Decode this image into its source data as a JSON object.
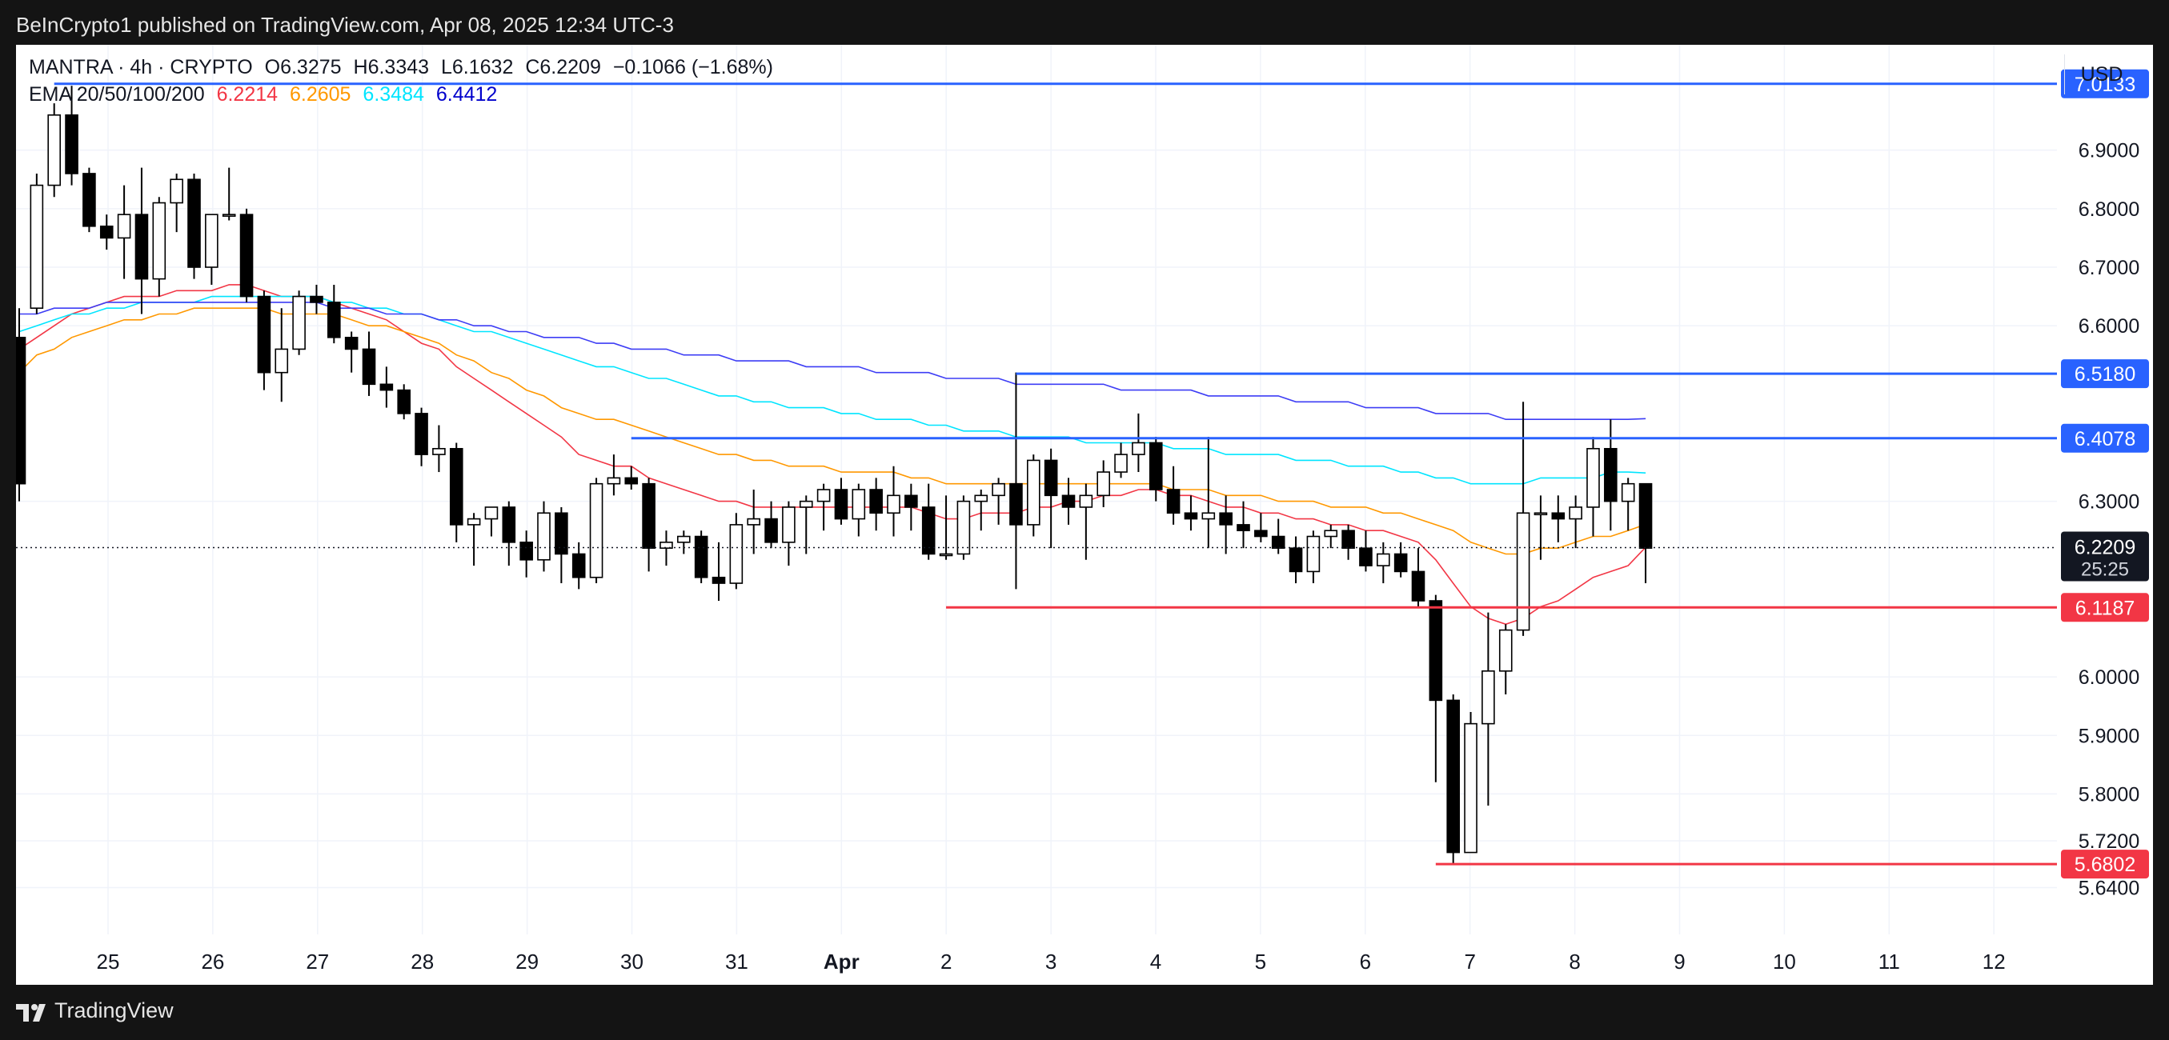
{
  "header": {
    "published_by": "BeInCrypto1 published on TradingView.com, Apr 08, 2025 12:34 UTC-3"
  },
  "legend": {
    "symbol_line": "MANTRA · 4h · CRYPTO",
    "open": "O6.3275",
    "high": "H6.3343",
    "low": "L6.1632",
    "close": "C6.2209",
    "change": "−0.1066 (−1.68%)",
    "ema_label": "EMA 20/50/100/200",
    "ema_values": [
      "6.2214",
      "6.2605",
      "6.3484",
      "6.4412"
    ]
  },
  "currency": "USD",
  "footer": {
    "brand": "TradingView"
  },
  "colors": {
    "up": "#ffffff",
    "down": "#000000",
    "ema20": "#f23645",
    "ema50": "#ff9800",
    "ema100": "#00e5ff",
    "ema200": "#3d3df5",
    "resistance": "#2962ff",
    "support": "#f23645"
  },
  "chart_data": {
    "type": "candlestick",
    "timeframe": "4h",
    "x_tick_labels": [
      "25",
      "26",
      "27",
      "28",
      "29",
      "30",
      "31",
      "Apr",
      "2",
      "3",
      "4",
      "5",
      "6",
      "7",
      "8",
      "9",
      "10",
      "11",
      "12"
    ],
    "y_tick_labels": [
      "6.9000",
      "6.8000",
      "6.7000",
      "6.6000",
      "6.3000",
      "6.0000",
      "5.9000",
      "5.8000",
      "5.7200",
      "5.6400"
    ],
    "ylim": [
      5.56,
      7.08
    ],
    "grid": true,
    "candles": [
      [
        6.58,
        6.63,
        6.3,
        6.33
      ],
      [
        6.63,
        6.86,
        6.62,
        6.84
      ],
      [
        6.84,
        6.98,
        6.82,
        6.96
      ],
      [
        6.96,
        7.01,
        6.84,
        6.86
      ],
      [
        6.86,
        6.87,
        6.76,
        6.77
      ],
      [
        6.77,
        6.79,
        6.73,
        6.75
      ],
      [
        6.75,
        6.84,
        6.68,
        6.79
      ],
      [
        6.79,
        6.87,
        6.62,
        6.68
      ],
      [
        6.68,
        6.82,
        6.65,
        6.81
      ],
      [
        6.81,
        6.86,
        6.76,
        6.85
      ],
      [
        6.85,
        6.86,
        6.68,
        6.7
      ],
      [
        6.7,
        6.79,
        6.67,
        6.79
      ],
      [
        6.79,
        6.87,
        6.78,
        6.79
      ],
      [
        6.79,
        6.8,
        6.64,
        6.65
      ],
      [
        6.65,
        6.66,
        6.49,
        6.52
      ],
      [
        6.52,
        6.63,
        6.47,
        6.56
      ],
      [
        6.56,
        6.66,
        6.55,
        6.65
      ],
      [
        6.65,
        6.67,
        6.62,
        6.64
      ],
      [
        6.64,
        6.67,
        6.57,
        6.58
      ],
      [
        6.58,
        6.59,
        6.52,
        6.56
      ],
      [
        6.56,
        6.59,
        6.48,
        6.5
      ],
      [
        6.5,
        6.53,
        6.46,
        6.49
      ],
      [
        6.49,
        6.5,
        6.44,
        6.45
      ],
      [
        6.45,
        6.46,
        6.36,
        6.38
      ],
      [
        6.38,
        6.43,
        6.35,
        6.39
      ],
      [
        6.39,
        6.4,
        6.23,
        6.26
      ],
      [
        6.26,
        6.28,
        6.19,
        6.27
      ],
      [
        6.27,
        6.29,
        6.24,
        6.29
      ],
      [
        6.29,
        6.3,
        6.19,
        6.23
      ],
      [
        6.23,
        6.25,
        6.17,
        6.2
      ],
      [
        6.2,
        6.3,
        6.18,
        6.28
      ],
      [
        6.28,
        6.29,
        6.16,
        6.21
      ],
      [
        6.21,
        6.23,
        6.15,
        6.17
      ],
      [
        6.17,
        6.34,
        6.16,
        6.33
      ],
      [
        6.33,
        6.38,
        6.31,
        6.34
      ],
      [
        6.34,
        6.36,
        6.32,
        6.33
      ],
      [
        6.33,
        6.34,
        6.18,
        6.22
      ],
      [
        6.22,
        6.25,
        6.19,
        6.23
      ],
      [
        6.23,
        6.25,
        6.21,
        6.24
      ],
      [
        6.24,
        6.25,
        6.16,
        6.17
      ],
      [
        6.17,
        6.23,
        6.13,
        6.16
      ],
      [
        6.16,
        6.28,
        6.15,
        6.26
      ],
      [
        6.26,
        6.32,
        6.21,
        6.27
      ],
      [
        6.27,
        6.3,
        6.22,
        6.23
      ],
      [
        6.23,
        6.3,
        6.19,
        6.29
      ],
      [
        6.29,
        6.31,
        6.21,
        6.3
      ],
      [
        6.3,
        6.33,
        6.25,
        6.32
      ],
      [
        6.32,
        6.34,
        6.26,
        6.27
      ],
      [
        6.27,
        6.33,
        6.24,
        6.32
      ],
      [
        6.32,
        6.34,
        6.25,
        6.28
      ],
      [
        6.28,
        6.36,
        6.24,
        6.31
      ],
      [
        6.31,
        6.33,
        6.25,
        6.29
      ],
      [
        6.29,
        6.33,
        6.2,
        6.21
      ],
      [
        6.21,
        6.31,
        6.2,
        6.21
      ],
      [
        6.21,
        6.31,
        6.2,
        6.3
      ],
      [
        6.3,
        6.32,
        6.25,
        6.31
      ],
      [
        6.31,
        6.34,
        6.26,
        6.33
      ],
      [
        6.33,
        6.52,
        6.15,
        6.26
      ],
      [
        6.26,
        6.38,
        6.24,
        6.37
      ],
      [
        6.37,
        6.39,
        6.22,
        6.31
      ],
      [
        6.31,
        6.34,
        6.26,
        6.29
      ],
      [
        6.29,
        6.33,
        6.2,
        6.31
      ],
      [
        6.31,
        6.37,
        6.29,
        6.35
      ],
      [
        6.35,
        6.4,
        6.34,
        6.38
      ],
      [
        6.38,
        6.45,
        6.35,
        6.4
      ],
      [
        6.4,
        6.41,
        6.3,
        6.32
      ],
      [
        6.32,
        6.36,
        6.26,
        6.28
      ],
      [
        6.28,
        6.31,
        6.25,
        6.27
      ],
      [
        6.27,
        6.41,
        6.22,
        6.28
      ],
      [
        6.28,
        6.31,
        6.21,
        6.26
      ],
      [
        6.26,
        6.3,
        6.22,
        6.25
      ],
      [
        6.25,
        6.28,
        6.23,
        6.24
      ],
      [
        6.24,
        6.27,
        6.21,
        6.22
      ],
      [
        6.22,
        6.24,
        6.16,
        6.18
      ],
      [
        6.18,
        6.25,
        6.16,
        6.24
      ],
      [
        6.24,
        6.26,
        6.22,
        6.25
      ],
      [
        6.25,
        6.26,
        6.2,
        6.22
      ],
      [
        6.22,
        6.25,
        6.18,
        6.19
      ],
      [
        6.19,
        6.23,
        6.16,
        6.21
      ],
      [
        6.21,
        6.23,
        6.17,
        6.18
      ],
      [
        6.18,
        6.22,
        6.12,
        6.13
      ],
      [
        6.13,
        6.14,
        5.82,
        5.96
      ],
      [
        5.96,
        5.97,
        5.68,
        5.7
      ],
      [
        5.7,
        5.94,
        5.71,
        5.92
      ],
      [
        5.92,
        6.11,
        5.78,
        6.01
      ],
      [
        6.01,
        6.09,
        5.97,
        6.08
      ],
      [
        6.08,
        6.47,
        6.07,
        6.28
      ],
      [
        6.28,
        6.31,
        6.2,
        6.28
      ],
      [
        6.28,
        6.31,
        6.23,
        6.27
      ],
      [
        6.27,
        6.31,
        6.22,
        6.29
      ],
      [
        6.29,
        6.41,
        6.24,
        6.39
      ],
      [
        6.39,
        6.44,
        6.25,
        6.3
      ],
      [
        6.3,
        6.34,
        6.25,
        6.33
      ],
      [
        6.33,
        6.33,
        6.16,
        6.22
      ]
    ],
    "ema_series": [
      {
        "name": "EMA 20",
        "values": [
          6.56,
          6.58,
          6.6,
          6.62,
          6.63,
          6.64,
          6.65,
          6.65,
          6.65,
          6.66,
          6.66,
          6.66,
          6.67,
          6.67,
          6.66,
          6.65,
          6.65,
          6.65,
          6.64,
          6.63,
          6.62,
          6.61,
          6.59,
          6.57,
          6.56,
          6.53,
          6.51,
          6.49,
          6.47,
          6.45,
          6.43,
          6.41,
          6.38,
          6.37,
          6.36,
          6.36,
          6.34,
          6.33,
          6.32,
          6.31,
          6.3,
          6.3,
          6.29,
          6.29,
          6.29,
          6.29,
          6.29,
          6.29,
          6.29,
          6.29,
          6.29,
          6.29,
          6.28,
          6.27,
          6.27,
          6.28,
          6.28,
          6.28,
          6.29,
          6.29,
          6.3,
          6.3,
          6.31,
          6.31,
          6.32,
          6.32,
          6.31,
          6.31,
          6.3,
          6.29,
          6.29,
          6.28,
          6.28,
          6.27,
          6.27,
          6.26,
          6.26,
          6.25,
          6.25,
          6.24,
          6.23,
          6.2,
          6.16,
          6.12,
          6.1,
          6.09,
          6.1,
          6.12,
          6.13,
          6.15,
          6.17,
          6.18,
          6.19,
          6.2214
        ]
      },
      {
        "name": "EMA 50",
        "values": [
          6.52,
          6.55,
          6.56,
          6.58,
          6.59,
          6.6,
          6.61,
          6.61,
          6.62,
          6.62,
          6.63,
          6.63,
          6.63,
          6.63,
          6.63,
          6.62,
          6.62,
          6.62,
          6.62,
          6.61,
          6.6,
          6.6,
          6.59,
          6.58,
          6.57,
          6.55,
          6.54,
          6.52,
          6.51,
          6.49,
          6.48,
          6.46,
          6.45,
          6.44,
          6.44,
          6.43,
          6.42,
          6.41,
          6.4,
          6.39,
          6.38,
          6.38,
          6.37,
          6.37,
          6.36,
          6.36,
          6.36,
          6.35,
          6.35,
          6.35,
          6.35,
          6.34,
          6.34,
          6.33,
          6.33,
          6.33,
          6.33,
          6.33,
          6.33,
          6.33,
          6.33,
          6.33,
          6.33,
          6.33,
          6.33,
          6.33,
          6.32,
          6.32,
          6.32,
          6.31,
          6.31,
          6.31,
          6.3,
          6.3,
          6.3,
          6.29,
          6.29,
          6.29,
          6.28,
          6.28,
          6.27,
          6.26,
          6.25,
          6.23,
          6.22,
          6.21,
          6.21,
          6.22,
          6.22,
          6.23,
          6.24,
          6.24,
          6.25,
          6.2605
        ]
      },
      {
        "name": "EMA 100",
        "values": [
          6.59,
          6.6,
          6.61,
          6.62,
          6.62,
          6.63,
          6.63,
          6.64,
          6.64,
          6.64,
          6.64,
          6.65,
          6.65,
          6.65,
          6.65,
          6.65,
          6.65,
          6.65,
          6.64,
          6.64,
          6.63,
          6.63,
          6.62,
          6.62,
          6.61,
          6.6,
          6.59,
          6.59,
          6.58,
          6.57,
          6.56,
          6.55,
          6.54,
          6.53,
          6.53,
          6.52,
          6.51,
          6.51,
          6.5,
          6.49,
          6.48,
          6.48,
          6.47,
          6.47,
          6.46,
          6.46,
          6.46,
          6.45,
          6.45,
          6.44,
          6.44,
          6.44,
          6.43,
          6.43,
          6.42,
          6.42,
          6.42,
          6.41,
          6.41,
          6.41,
          6.41,
          6.4,
          6.4,
          6.4,
          6.4,
          6.4,
          6.39,
          6.39,
          6.39,
          6.38,
          6.38,
          6.38,
          6.38,
          6.37,
          6.37,
          6.37,
          6.36,
          6.36,
          6.36,
          6.35,
          6.35,
          6.34,
          6.34,
          6.33,
          6.33,
          6.33,
          6.33,
          6.34,
          6.34,
          6.34,
          6.34,
          6.35,
          6.35,
          6.3484
        ]
      },
      {
        "name": "EMA 200",
        "values": [
          6.62,
          6.62,
          6.63,
          6.63,
          6.63,
          6.64,
          6.64,
          6.64,
          6.64,
          6.64,
          6.64,
          6.64,
          6.64,
          6.64,
          6.64,
          6.64,
          6.64,
          6.64,
          6.63,
          6.63,
          6.63,
          6.62,
          6.62,
          6.62,
          6.61,
          6.61,
          6.6,
          6.6,
          6.59,
          6.59,
          6.58,
          6.58,
          6.58,
          6.57,
          6.57,
          6.56,
          6.56,
          6.56,
          6.55,
          6.55,
          6.55,
          6.54,
          6.54,
          6.54,
          6.54,
          6.53,
          6.53,
          6.53,
          6.53,
          6.52,
          6.52,
          6.52,
          6.52,
          6.51,
          6.51,
          6.51,
          6.51,
          6.5,
          6.5,
          6.5,
          6.5,
          6.5,
          6.5,
          6.49,
          6.49,
          6.49,
          6.49,
          6.49,
          6.48,
          6.48,
          6.48,
          6.48,
          6.48,
          6.47,
          6.47,
          6.47,
          6.47,
          6.46,
          6.46,
          6.46,
          6.46,
          6.45,
          6.45,
          6.45,
          6.45,
          6.44,
          6.44,
          6.44,
          6.44,
          6.44,
          6.44,
          6.44,
          6.44,
          6.4412
        ]
      }
    ],
    "levels": [
      {
        "label": "7.0133",
        "value": 7.0133,
        "kind": "resistance",
        "start_candle": 2
      },
      {
        "label": "6.5180",
        "value": 6.518,
        "kind": "resistance",
        "start_candle": 57
      },
      {
        "label": "6.4078",
        "value": 6.4078,
        "kind": "resistance",
        "start_candle": 35
      },
      {
        "label": "6.1187",
        "value": 6.1187,
        "kind": "support",
        "start_candle": 53
      },
      {
        "label": "5.6802",
        "value": 5.6802,
        "kind": "support",
        "start_candle": 81
      }
    ],
    "last_price": {
      "value": 6.2209,
      "label": "6.2209",
      "countdown": "25:25"
    }
  }
}
